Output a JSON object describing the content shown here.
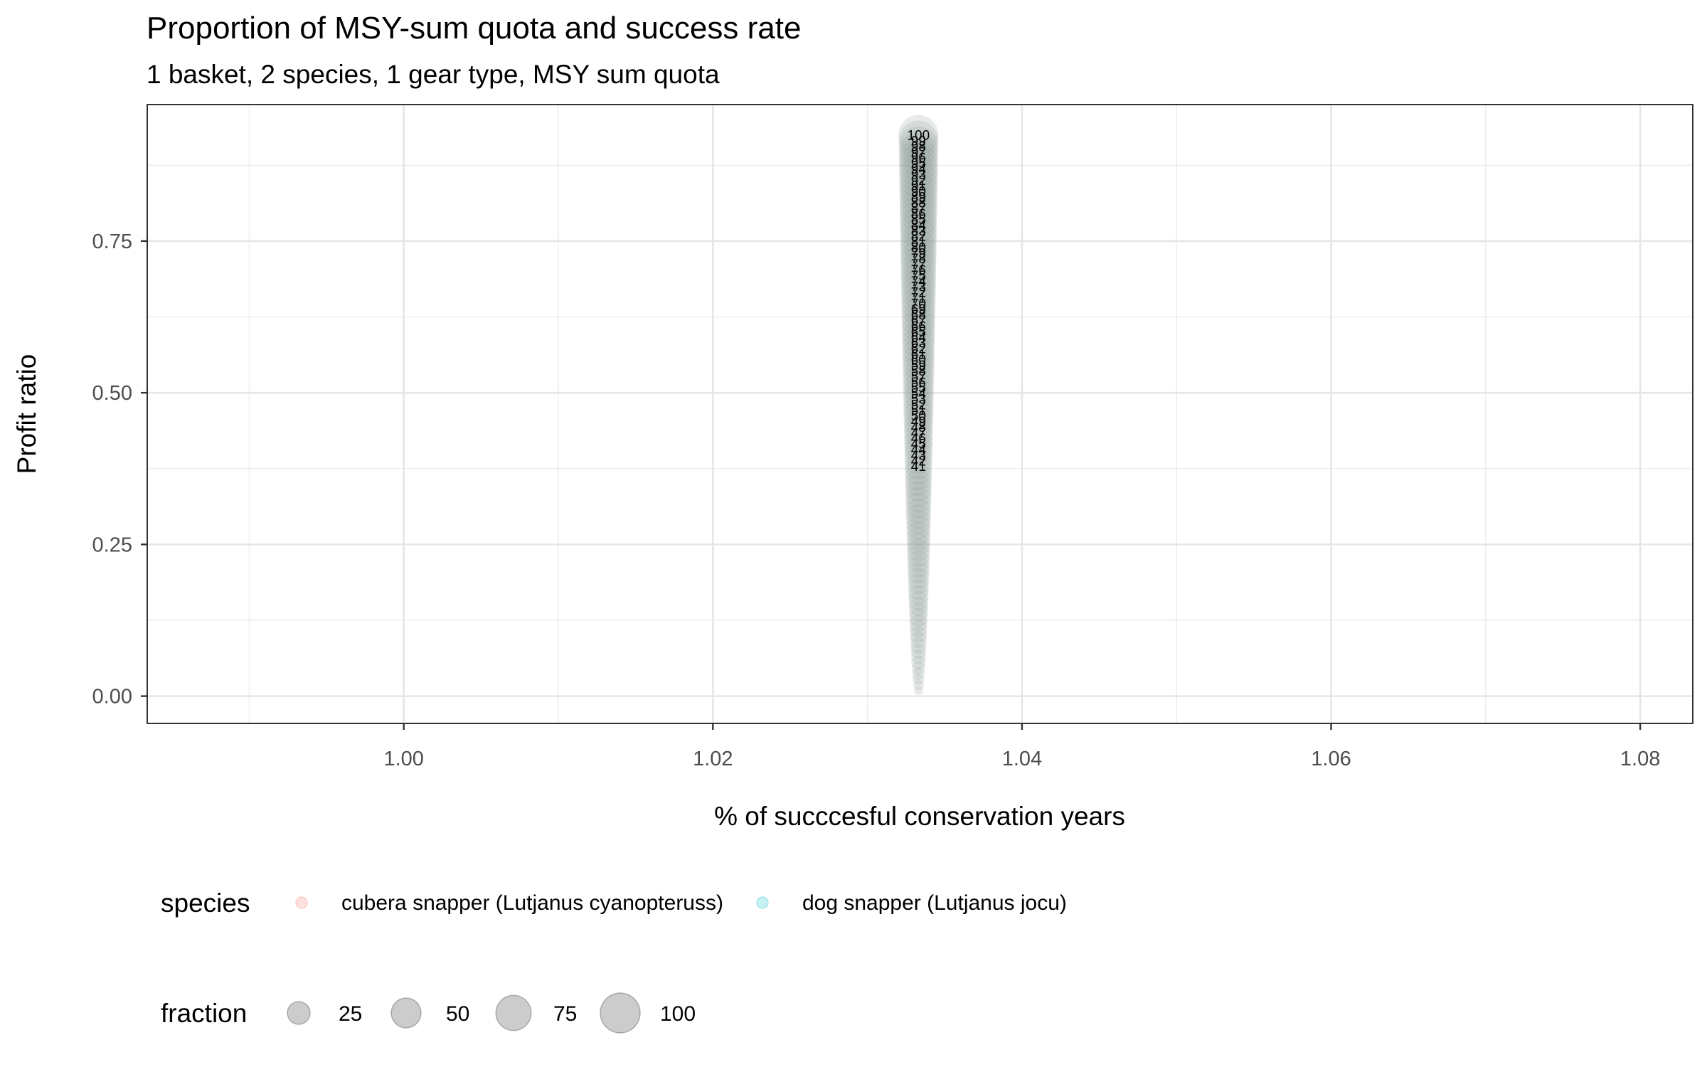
{
  "chart_data": {
    "type": "scatter",
    "title": "Proportion of MSY-sum quota and success rate",
    "subtitle": "1 basket, 2 species, 1 gear type, MSY sum quota",
    "xlabel": "% of succcesful conservation years",
    "ylabel": "Profit ratio",
    "xlim": [
      0.9834,
      1.0834
    ],
    "ylim": [
      -0.045,
      0.975
    ],
    "x_ticks": [
      {
        "value": 1.0,
        "label": "1.00"
      },
      {
        "value": 1.02,
        "label": "1.02"
      },
      {
        "value": 1.04,
        "label": "1.04"
      },
      {
        "value": 1.06,
        "label": "1.06"
      },
      {
        "value": 1.08,
        "label": "1.08"
      }
    ],
    "y_ticks": [
      {
        "value": 0.0,
        "label": "0.00"
      },
      {
        "value": 0.25,
        "label": "0.25"
      },
      {
        "value": 0.5,
        "label": "0.50"
      },
      {
        "value": 0.75,
        "label": "0.75"
      }
    ],
    "grid": true,
    "point_x": 1.0333,
    "fraction_range": [
      1,
      100
    ],
    "profit_ratio_at_fraction_100": 0.925,
    "labeled_fraction_range": [
      41,
      100
    ],
    "legend_species": {
      "title": "species",
      "entries": [
        {
          "label": "cubera snapper (Lutjanus cyanopteruss)",
          "color": "#F8766D"
        },
        {
          "label": "dog snapper (Lutjanus jocu)",
          "color": "#00BFC4"
        }
      ]
    },
    "legend_fraction": {
      "title": "fraction",
      "entries": [
        {
          "value": 25,
          "label": "25"
        },
        {
          "value": 50,
          "label": "50"
        },
        {
          "value": 75,
          "label": "75"
        },
        {
          "value": 100,
          "label": "100"
        }
      ]
    },
    "legend_position": "bottom"
  }
}
